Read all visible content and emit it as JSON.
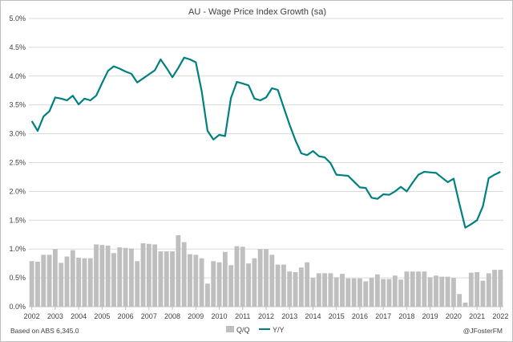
{
  "chart_data": {
    "type": "bar+line",
    "title": "AU - Wage Price Index Growth (sa)",
    "ylim": [
      0,
      5.0
    ],
    "yticks": [
      "0.0%",
      "0.5%",
      "1.0%",
      "1.5%",
      "2.0%",
      "2.5%",
      "3.0%",
      "3.5%",
      "4.0%",
      "4.5%",
      "5.0%"
    ],
    "xticks": [
      "2002",
      "2003",
      "2004",
      "2005",
      "2006",
      "2007",
      "2008",
      "2009",
      "2010",
      "2011",
      "2012",
      "2013",
      "2014",
      "2015",
      "2016",
      "2017",
      "2018",
      "2019",
      "2020",
      "2021",
      "2022"
    ],
    "x_start": "2002-Q1",
    "grid": "horizontal",
    "legend": {
      "position": "bottom",
      "entries": [
        {
          "label": "Q/Q",
          "style": "bar"
        },
        {
          "label": "Y/Y",
          "style": "line"
        }
      ]
    },
    "series": [
      {
        "name": "Q/Q",
        "kind": "bar",
        "color": "#bfbfbf",
        "values": [
          0.79,
          0.78,
          0.9,
          0.9,
          1.0,
          0.76,
          0.87,
          0.98,
          0.85,
          0.84,
          0.84,
          1.08,
          1.07,
          1.06,
          0.93,
          1.03,
          1.02,
          1.01,
          0.79,
          1.1,
          1.09,
          1.08,
          0.96,
          0.96,
          0.96,
          1.24,
          1.12,
          0.91,
          0.9,
          0.84,
          0.4,
          0.79,
          0.77,
          0.95,
          0.72,
          1.05,
          1.04,
          0.75,
          0.84,
          1.0,
          1.0,
          0.9,
          0.73,
          0.73,
          0.61,
          0.6,
          0.68,
          0.77,
          0.5,
          0.58,
          0.58,
          0.58,
          0.51,
          0.57,
          0.49,
          0.49,
          0.49,
          0.44,
          0.5,
          0.56,
          0.48,
          0.48,
          0.54,
          0.47,
          0.61,
          0.61,
          0.61,
          0.61,
          0.51,
          0.54,
          0.52,
          0.52,
          0.5,
          0.22,
          0.07,
          0.59,
          0.6,
          0.45,
          0.58,
          0.64,
          0.64
        ]
      },
      {
        "name": "Y/Y",
        "kind": "line",
        "color": "#008080",
        "values": [
          3.22,
          3.05,
          3.3,
          3.39,
          3.63,
          3.61,
          3.58,
          3.66,
          3.51,
          3.61,
          3.58,
          3.66,
          3.88,
          4.09,
          4.17,
          4.13,
          4.08,
          4.04,
          3.89,
          3.96,
          4.03,
          4.1,
          4.29,
          4.14,
          3.98,
          4.14,
          4.32,
          4.29,
          4.24,
          3.74,
          3.05,
          2.9,
          2.98,
          2.96,
          3.62,
          3.9,
          3.87,
          3.84,
          3.61,
          3.58,
          3.63,
          3.79,
          3.76,
          3.46,
          3.16,
          2.89,
          2.66,
          2.63,
          2.7,
          2.61,
          2.59,
          2.49,
          2.29,
          2.28,
          2.27,
          2.17,
          2.07,
          2.06,
          1.89,
          1.87,
          1.95,
          1.94,
          2.0,
          2.08,
          2.0,
          2.15,
          2.29,
          2.34,
          2.33,
          2.32,
          2.24,
          2.16,
          2.22,
          1.78,
          1.37,
          1.43,
          1.5,
          1.74,
          2.23,
          2.29,
          2.34
        ]
      }
    ]
  },
  "footer": {
    "source": "Based on ABS 6,345.0",
    "credit": "@JFosterFM"
  }
}
